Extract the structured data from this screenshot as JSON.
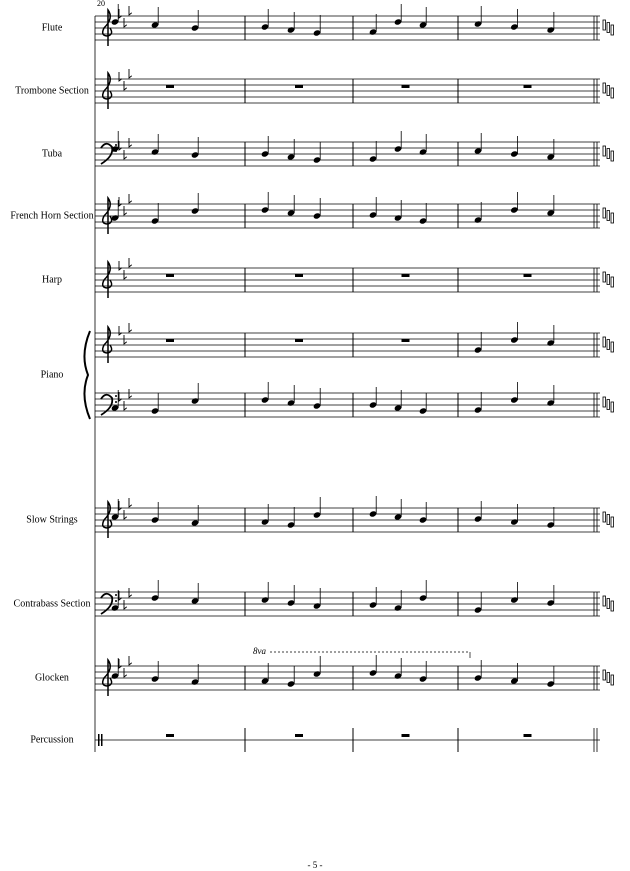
{
  "page": {
    "measure_number": "20",
    "page_number": "- 5 -",
    "ottava": "8va"
  },
  "instruments": [
    {
      "name": "Flute"
    },
    {
      "name": "Trombone Section"
    },
    {
      "name": "Tuba"
    },
    {
      "name": "French Horn Section"
    },
    {
      "name": "Harp"
    },
    {
      "name": "Piano"
    },
    {
      "name": "Slow Strings"
    },
    {
      "name": "Contrabass Section"
    },
    {
      "name": "Glocken"
    },
    {
      "name": "Percussion"
    }
  ]
}
